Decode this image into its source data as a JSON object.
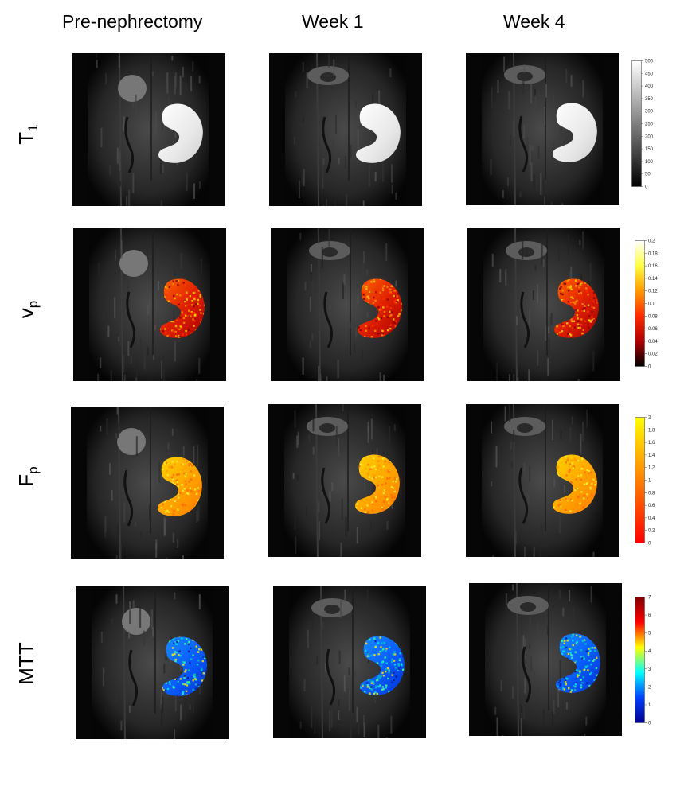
{
  "columns": [
    {
      "title": "Pre-nephrectomy"
    },
    {
      "title": "Week 1"
    },
    {
      "title": "Week 4"
    }
  ],
  "rows": [
    {
      "label_main": "T",
      "label_sub": "1",
      "map": "gray",
      "colorbar": {
        "ticks": [
          "500",
          "450",
          "400",
          "350",
          "300",
          "250",
          "200",
          "150",
          "100",
          "50",
          "0"
        ],
        "colors": [
          "#ffffff",
          "#000000"
        ]
      }
    },
    {
      "label_main": "v",
      "label_sub": "p",
      "map": "hot",
      "colorbar": {
        "ticks": [
          "0.2",
          "0.18",
          "0.16",
          "0.14",
          "0.12",
          "0.1",
          "0.08",
          "0.06",
          "0.04",
          "0.02",
          "0"
        ],
        "colors": [
          "#ffffff",
          "#ffff40",
          "#ff9a00",
          "#ff2a00",
          "#b00000",
          "#000000"
        ]
      }
    },
    {
      "label_main": "F",
      "label_sub": "p",
      "map": "autumn",
      "colorbar": {
        "ticks": [
          "2",
          "1.8",
          "1.6",
          "1.4",
          "1.2",
          "1",
          "0.8",
          "0.6",
          "0.4",
          "0.2",
          "0"
        ],
        "colors": [
          "#ffff00",
          "#ff8000",
          "#ff0000"
        ]
      }
    },
    {
      "label_main": "MTT",
      "label_sub": "",
      "map": "jet",
      "colorbar": {
        "ticks": [
          "7",
          "6",
          "5",
          "4",
          "3",
          "2",
          "1",
          "0"
        ],
        "colors": [
          "#800000",
          "#ff0000",
          "#ffff00",
          "#00ffff",
          "#0040ff",
          "#00008f"
        ]
      }
    }
  ]
}
